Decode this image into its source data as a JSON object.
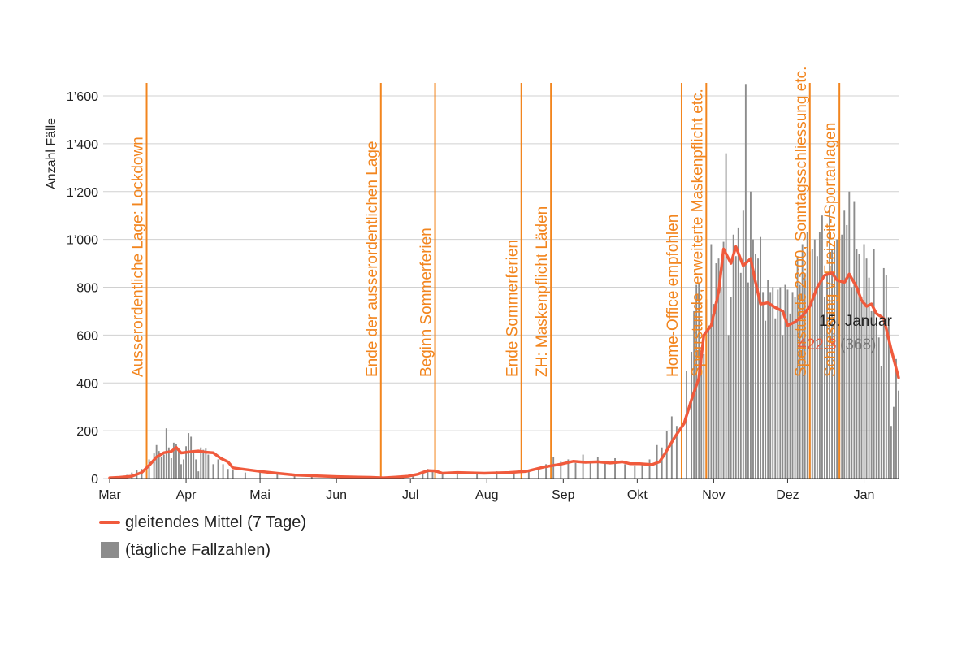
{
  "chart_data": {
    "type": "bar+line",
    "ylabel": "Anzahl Fälle",
    "ylim": [
      0,
      1600
    ],
    "y_ticks": [
      {
        "value": 0,
        "label": "0"
      },
      {
        "value": 200,
        "label": "200"
      },
      {
        "value": 400,
        "label": "400"
      },
      {
        "value": 600,
        "label": "600"
      },
      {
        "value": 800,
        "label": "800"
      },
      {
        "value": 1000,
        "label": "1’000"
      },
      {
        "value": 1200,
        "label": "1’200"
      },
      {
        "value": 1400,
        "label": "1’400"
      },
      {
        "value": 1600,
        "label": "1’600"
      }
    ],
    "x_ticks": [
      {
        "date": "2020-03-01",
        "label": "Mar"
      },
      {
        "date": "2020-04-01",
        "label": "Apr"
      },
      {
        "date": "2020-05-01",
        "label": "Mai"
      },
      {
        "date": "2020-06-01",
        "label": "Jun"
      },
      {
        "date": "2020-07-01",
        "label": "Jul"
      },
      {
        "date": "2020-08-01",
        "label": "Aug"
      },
      {
        "date": "2020-09-01",
        "label": "Sep"
      },
      {
        "date": "2020-10-01",
        "label": "Okt"
      },
      {
        "date": "2020-11-01",
        "label": "Nov"
      },
      {
        "date": "2020-12-01",
        "label": "Dez"
      },
      {
        "date": "2021-01-01",
        "label": "Jan"
      }
    ],
    "x_range": [
      "2020-03-01",
      "2021-01-15"
    ],
    "grid": true,
    "legend_position": "bottom-left",
    "series": [
      {
        "name": "gleitendes Mittel (7 Tage)",
        "kind": "line",
        "color": "#f05a3c",
        "points": [
          [
            "2020-03-01",
            3
          ],
          [
            "2020-03-05",
            5
          ],
          [
            "2020-03-10",
            10
          ],
          [
            "2020-03-14",
            25
          ],
          [
            "2020-03-17",
            55
          ],
          [
            "2020-03-20",
            90
          ],
          [
            "2020-03-23",
            108
          ],
          [
            "2020-03-26",
            113
          ],
          [
            "2020-03-28",
            130
          ],
          [
            "2020-03-30",
            107
          ],
          [
            "2020-04-03",
            112
          ],
          [
            "2020-04-06",
            115
          ],
          [
            "2020-04-09",
            110
          ],
          [
            "2020-04-12",
            108
          ],
          [
            "2020-04-15",
            85
          ],
          [
            "2020-04-18",
            70
          ],
          [
            "2020-04-20",
            45
          ],
          [
            "2020-04-25",
            38
          ],
          [
            "2020-05-01",
            30
          ],
          [
            "2020-05-08",
            22
          ],
          [
            "2020-05-15",
            15
          ],
          [
            "2020-05-22",
            12
          ],
          [
            "2020-06-01",
            8
          ],
          [
            "2020-06-10",
            6
          ],
          [
            "2020-06-15",
            5
          ],
          [
            "2020-06-20",
            3
          ],
          [
            "2020-06-25",
            6
          ],
          [
            "2020-06-30",
            10
          ],
          [
            "2020-07-04",
            18
          ],
          [
            "2020-07-08",
            33
          ],
          [
            "2020-07-11",
            32
          ],
          [
            "2020-07-14",
            22
          ],
          [
            "2020-07-20",
            25
          ],
          [
            "2020-07-31",
            22
          ],
          [
            "2020-08-10",
            25
          ],
          [
            "2020-08-17",
            30
          ],
          [
            "2020-08-24",
            48
          ],
          [
            "2020-08-31",
            60
          ],
          [
            "2020-09-05",
            72
          ],
          [
            "2020-09-10",
            68
          ],
          [
            "2020-09-15",
            70
          ],
          [
            "2020-09-20",
            65
          ],
          [
            "2020-09-25",
            70
          ],
          [
            "2020-09-28",
            62
          ],
          [
            "2020-10-02",
            62
          ],
          [
            "2020-10-07",
            58
          ],
          [
            "2020-10-10",
            70
          ],
          [
            "2020-10-12",
            100
          ],
          [
            "2020-10-16",
            170
          ],
          [
            "2020-10-20",
            230
          ],
          [
            "2020-10-23",
            330
          ],
          [
            "2020-10-26",
            420
          ],
          [
            "2020-10-28",
            600
          ],
          [
            "2020-10-31",
            640
          ],
          [
            "2020-11-03",
            780
          ],
          [
            "2020-11-05",
            960
          ],
          [
            "2020-11-08",
            900
          ],
          [
            "2020-11-10",
            970
          ],
          [
            "2020-11-13",
            890
          ],
          [
            "2020-11-16",
            920
          ],
          [
            "2020-11-18",
            820
          ],
          [
            "2020-11-20",
            730
          ],
          [
            "2020-11-23",
            735
          ],
          [
            "2020-11-26",
            715
          ],
          [
            "2020-11-29",
            700
          ],
          [
            "2020-12-01",
            640
          ],
          [
            "2020-12-04",
            655
          ],
          [
            "2020-12-07",
            680
          ],
          [
            "2020-12-10",
            720
          ],
          [
            "2020-12-13",
            800
          ],
          [
            "2020-12-16",
            850
          ],
          [
            "2020-12-19",
            860
          ],
          [
            "2020-12-21",
            830
          ],
          [
            "2020-12-24",
            820
          ],
          [
            "2020-12-26",
            855
          ],
          [
            "2020-12-29",
            800
          ],
          [
            "2020-12-31",
            745
          ],
          [
            "2021-01-02",
            720
          ],
          [
            "2021-01-04",
            730
          ],
          [
            "2021-01-06",
            690
          ],
          [
            "2021-01-09",
            670
          ],
          [
            "2021-01-12",
            540
          ],
          [
            "2021-01-15",
            422
          ]
        ]
      },
      {
        "name": "(tägliche Fallzahlen)",
        "kind": "bar",
        "color": "#8c8c8c",
        "points": [
          [
            "2020-03-01",
            2
          ],
          [
            "2020-03-08",
            15
          ],
          [
            "2020-03-10",
            25
          ],
          [
            "2020-03-12",
            35
          ],
          [
            "2020-03-14",
            40
          ],
          [
            "2020-03-17",
            80
          ],
          [
            "2020-03-19",
            105
          ],
          [
            "2020-03-20",
            140
          ],
          [
            "2020-03-21",
            115
          ],
          [
            "2020-03-22",
            90
          ],
          [
            "2020-03-23",
            100
          ],
          [
            "2020-03-24",
            210
          ],
          [
            "2020-03-25",
            130
          ],
          [
            "2020-03-26",
            85
          ],
          [
            "2020-03-27",
            150
          ],
          [
            "2020-03-28",
            145
          ],
          [
            "2020-03-29",
            120
          ],
          [
            "2020-03-30",
            60
          ],
          [
            "2020-03-31",
            80
          ],
          [
            "2020-04-01",
            135
          ],
          [
            "2020-04-02",
            190
          ],
          [
            "2020-04-03",
            175
          ],
          [
            "2020-04-04",
            110
          ],
          [
            "2020-04-05",
            80
          ],
          [
            "2020-04-06",
            30
          ],
          [
            "2020-04-07",
            130
          ],
          [
            "2020-04-08",
            120
          ],
          [
            "2020-04-09",
            125
          ],
          [
            "2020-04-10",
            100
          ],
          [
            "2020-04-12",
            60
          ],
          [
            "2020-04-14",
            80
          ],
          [
            "2020-04-16",
            60
          ],
          [
            "2020-04-18",
            40
          ],
          [
            "2020-04-20",
            35
          ],
          [
            "2020-04-25",
            25
          ],
          [
            "2020-05-01",
            30
          ],
          [
            "2020-05-08",
            20
          ],
          [
            "2020-05-15",
            15
          ],
          [
            "2020-05-22",
            10
          ],
          [
            "2020-06-01",
            8
          ],
          [
            "2020-06-10",
            5
          ],
          [
            "2020-06-20",
            3
          ],
          [
            "2020-06-28",
            10
          ],
          [
            "2020-07-02",
            20
          ],
          [
            "2020-07-06",
            30
          ],
          [
            "2020-07-08",
            40
          ],
          [
            "2020-07-10",
            35
          ],
          [
            "2020-07-14",
            20
          ],
          [
            "2020-07-20",
            25
          ],
          [
            "2020-07-28",
            20
          ],
          [
            "2020-08-05",
            30
          ],
          [
            "2020-08-12",
            25
          ],
          [
            "2020-08-18",
            35
          ],
          [
            "2020-08-22",
            45
          ],
          [
            "2020-08-25",
            60
          ],
          [
            "2020-08-28",
            90
          ],
          [
            "2020-08-31",
            70
          ],
          [
            "2020-09-03",
            80
          ],
          [
            "2020-09-06",
            65
          ],
          [
            "2020-09-09",
            100
          ],
          [
            "2020-09-12",
            75
          ],
          [
            "2020-09-15",
            90
          ],
          [
            "2020-09-18",
            70
          ],
          [
            "2020-09-22",
            85
          ],
          [
            "2020-09-26",
            60
          ],
          [
            "2020-09-30",
            55
          ],
          [
            "2020-10-03",
            65
          ],
          [
            "2020-10-06",
            80
          ],
          [
            "2020-10-09",
            140
          ],
          [
            "2020-10-11",
            130
          ],
          [
            "2020-10-13",
            200
          ],
          [
            "2020-10-15",
            260
          ],
          [
            "2020-10-17",
            220
          ],
          [
            "2020-10-19",
            320
          ],
          [
            "2020-10-21",
            450
          ],
          [
            "2020-10-23",
            530
          ],
          [
            "2020-10-24",
            700
          ],
          [
            "2020-10-25",
            810
          ],
          [
            "2020-10-26",
            820
          ],
          [
            "2020-10-27",
            540
          ],
          [
            "2020-10-28",
            520
          ],
          [
            "2020-10-29",
            750
          ],
          [
            "2020-10-30",
            640
          ],
          [
            "2020-10-31",
            980
          ],
          [
            "2020-11-01",
            730
          ],
          [
            "2020-11-02",
            900
          ],
          [
            "2020-11-03",
            920
          ],
          [
            "2020-11-04",
            800
          ],
          [
            "2020-11-05",
            990
          ],
          [
            "2020-11-06",
            1360
          ],
          [
            "2020-11-07",
            600
          ],
          [
            "2020-11-08",
            760
          ],
          [
            "2020-11-09",
            1020
          ],
          [
            "2020-11-10",
            930
          ],
          [
            "2020-11-11",
            1050
          ],
          [
            "2020-11-12",
            860
          ],
          [
            "2020-11-13",
            1120
          ],
          [
            "2020-11-14",
            1650
          ],
          [
            "2020-11-15",
            820
          ],
          [
            "2020-11-16",
            1200
          ],
          [
            "2020-11-17",
            1000
          ],
          [
            "2020-11-18",
            940
          ],
          [
            "2020-11-19",
            920
          ],
          [
            "2020-11-20",
            1010
          ],
          [
            "2020-11-21",
            780
          ],
          [
            "2020-11-22",
            660
          ],
          [
            "2020-11-23",
            830
          ],
          [
            "2020-11-24",
            780
          ],
          [
            "2020-11-25",
            800
          ],
          [
            "2020-11-26",
            670
          ],
          [
            "2020-11-27",
            790
          ],
          [
            "2020-11-28",
            800
          ],
          [
            "2020-11-29",
            600
          ],
          [
            "2020-11-30",
            810
          ],
          [
            "2020-12-01",
            790
          ],
          [
            "2020-12-02",
            690
          ],
          [
            "2020-12-03",
            780
          ],
          [
            "2020-12-04",
            760
          ],
          [
            "2020-12-05",
            930
          ],
          [
            "2020-12-06",
            810
          ],
          [
            "2020-12-07",
            980
          ],
          [
            "2020-12-08",
            860
          ],
          [
            "2020-12-09",
            1030
          ],
          [
            "2020-12-10",
            950
          ],
          [
            "2020-12-11",
            960
          ],
          [
            "2020-12-12",
            1000
          ],
          [
            "2020-12-13",
            930
          ],
          [
            "2020-12-14",
            1030
          ],
          [
            "2020-12-15",
            1100
          ],
          [
            "2020-12-16",
            760
          ],
          [
            "2020-12-17",
            860
          ],
          [
            "2020-12-18",
            1140
          ],
          [
            "2020-12-19",
            960
          ],
          [
            "2020-12-20",
            980
          ],
          [
            "2020-12-21",
            1000
          ],
          [
            "2020-12-22",
            1010
          ],
          [
            "2020-12-23",
            1020
          ],
          [
            "2020-12-24",
            1120
          ],
          [
            "2020-12-25",
            1060
          ],
          [
            "2020-12-26",
            1200
          ],
          [
            "2020-12-27",
            800
          ],
          [
            "2020-12-28",
            1160
          ],
          [
            "2020-12-29",
            960
          ],
          [
            "2020-12-30",
            940
          ],
          [
            "2020-12-31",
            760
          ],
          [
            "2021-01-01",
            980
          ],
          [
            "2021-01-02",
            920
          ],
          [
            "2021-01-03",
            840
          ],
          [
            "2021-01-04",
            700
          ],
          [
            "2021-01-05",
            960
          ],
          [
            "2021-01-06",
            640
          ],
          [
            "2021-01-07",
            590
          ],
          [
            "2021-01-08",
            470
          ],
          [
            "2021-01-09",
            880
          ],
          [
            "2021-01-10",
            850
          ],
          [
            "2021-01-11",
            640
          ],
          [
            "2021-01-12",
            220
          ],
          [
            "2021-01-13",
            300
          ],
          [
            "2021-01-14",
            500
          ],
          [
            "2021-01-15",
            368
          ]
        ]
      }
    ],
    "events": [
      {
        "date": "2020-03-16",
        "label": "Ausserordentliche Lage: Lockdown"
      },
      {
        "date": "2020-06-19",
        "label": "Ende der ausserordentlichen Lage"
      },
      {
        "date": "2020-07-11",
        "label": "Beginn Sommerferien"
      },
      {
        "date": "2020-08-15",
        "label": "Ende Sommerferien"
      },
      {
        "date": "2020-08-27",
        "label": "ZH: Maskenpflicht Läden"
      },
      {
        "date": "2020-10-19",
        "label": "Home-Office empfohlen"
      },
      {
        "date": "2020-10-29",
        "label": "Sperrstunde, erweiterte Maskenpflicht etc."
      },
      {
        "date": "2020-12-10",
        "label": "Sperrstunde 23:00, Sonntagsschliessung etc."
      },
      {
        "date": "2020-12-22",
        "label": "Schliessung v. Freizeit-/Sportanlagen"
      }
    ],
    "event_color": "#f2851e",
    "callout": {
      "date_label": "15. Januar",
      "average": "422.3",
      "daily": "(368)"
    }
  }
}
